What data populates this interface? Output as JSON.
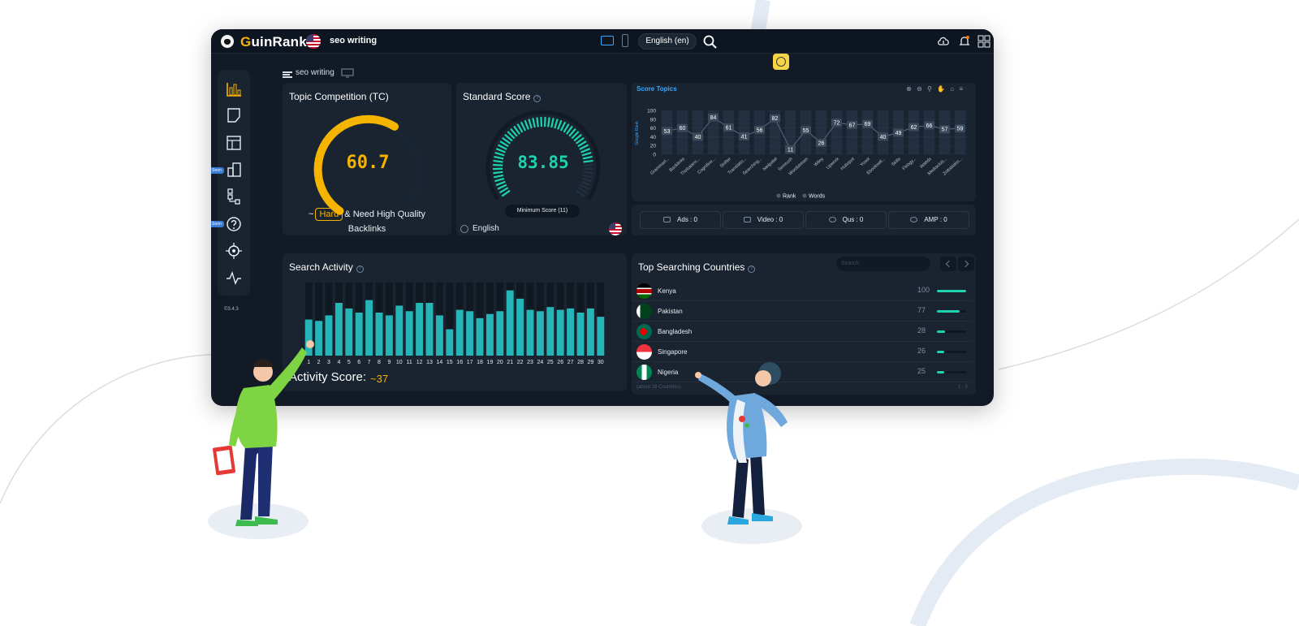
{
  "app": {
    "brand_first": "G",
    "brand_rest": "uinRank",
    "keyword": "seo writing",
    "language": "English (en)",
    "version": "©3.4.3"
  },
  "sidebar": {
    "items": [
      {
        "icon": "bar-chart-icon"
      },
      {
        "icon": "document-icon"
      },
      {
        "icon": "layout-table-icon"
      },
      {
        "icon": "buildings-icon",
        "badge": "Soon"
      },
      {
        "icon": "sitemap-icon"
      },
      {
        "icon": "question-icon",
        "badge": "Soon"
      },
      {
        "icon": "target-icon"
      },
      {
        "icon": "pulse-icon"
      }
    ]
  },
  "breadcrumb": {
    "label": "seo writing"
  },
  "topic_competition": {
    "title": "Topic Competition (TC)",
    "value": "60.7",
    "gauge_fraction": 0.607,
    "prefix": "~",
    "badge": "Hard",
    "suffix": "& Need High Quality",
    "line2": "Backlinks"
  },
  "standard_score": {
    "title": "Standard Score",
    "value": "83.85",
    "gauge_fraction": 0.8385,
    "min_label": "Minimum Score (11)",
    "language": "English"
  },
  "score_topics": {
    "title": "Score Topics",
    "tools": "⊕ ⊖ ⚲ ✋ ⌂ ≡",
    "legend_rank": "Rank",
    "legend_words": "Words",
    "yaxis_label": "Google Rank"
  },
  "features": {
    "ads": "Ads : 0",
    "video": "Video : 0",
    "qus": "Qus : 0",
    "amp": "AMP : 0"
  },
  "search_activity": {
    "title": "Search Activity",
    "score_label": "Activity Score:",
    "score_value": "~37"
  },
  "countries": {
    "title": "Top Searching Countries",
    "search_placeholder": "Search",
    "rows": [
      {
        "name": "Kenya",
        "value": "100",
        "fraction": 1.0
      },
      {
        "name": "Pakistan",
        "value": "77",
        "fraction": 0.77
      },
      {
        "name": "Bangladesh",
        "value": "28",
        "fraction": 0.28
      },
      {
        "name": "Singapore",
        "value": "26",
        "fraction": 0.26
      },
      {
        "name": "Nigeria",
        "value": "25",
        "fraction": 0.25
      }
    ],
    "footer": "(about 28 Countries)",
    "pager": "1 - 5"
  },
  "chart_data": [
    {
      "type": "line",
      "title": "Score Topics",
      "ylabel": "Google Rank",
      "ylim": [
        0,
        100
      ],
      "yticks": [
        0,
        20,
        40,
        60,
        80,
        100
      ],
      "categories": [
        "Grammarl...",
        "Backlinks",
        "Thebalanc...",
        "Cognitive...",
        "Shifter",
        "Translatio...",
        "Searching...",
        "Neilpatel",
        "Semrush",
        "Wordstream",
        "Wiley",
        "Upwork",
        "Hubspot",
        "Yoast",
        "Ebooksell...",
        "Skills",
        "Flxbgy...",
        "Wattds",
        "Mediaclub...",
        "Zoltablabs..."
      ],
      "series": [
        {
          "name": "Rank",
          "values": [
            53,
            60,
            40,
            84,
            61,
            41,
            56,
            82,
            11,
            55,
            26,
            72,
            67,
            69,
            40,
            49,
            62,
            66,
            57,
            59
          ]
        }
      ],
      "legend": [
        "Rank",
        "Words"
      ],
      "grid": true
    },
    {
      "type": "bar",
      "title": "Search Activity",
      "categories": [
        "1",
        "2",
        "3",
        "4",
        "5",
        "6",
        "7",
        "8",
        "9",
        "10",
        "11",
        "12",
        "13",
        "14",
        "15",
        "16",
        "17",
        "18",
        "19",
        "20",
        "21",
        "22",
        "23",
        "24",
        "25",
        "26",
        "27",
        "28",
        "29",
        "30"
      ],
      "values": [
        26,
        25,
        29,
        38,
        34,
        31,
        40,
        31,
        29,
        36,
        32,
        38,
        38,
        29,
        19,
        33,
        32,
        27,
        30,
        32,
        47,
        41,
        33,
        32,
        35,
        33,
        34,
        31,
        34,
        28
      ],
      "ylim": [
        0,
        100
      ]
    }
  ]
}
